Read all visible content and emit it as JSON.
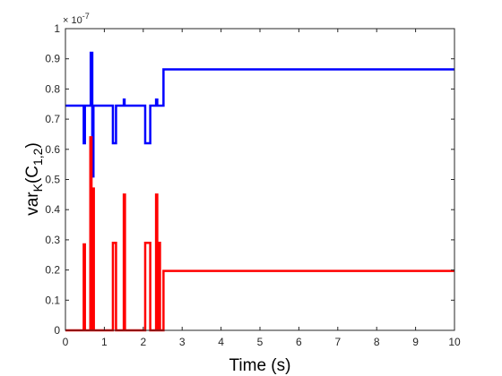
{
  "chart_data": {
    "type": "line",
    "xlabel": "Time (s)",
    "ylabel_main": "var",
    "ylabel_sub": "K",
    "ylabel_paren_open": "(C",
    "ylabel_paren_sub": "1,2",
    "ylabel_paren_close": ")",
    "exponent_base": "× 10",
    "exponent_power": "-7",
    "xlim": [
      0,
      10
    ],
    "ylim": [
      0,
      1
    ],
    "x_ticks": [
      "0",
      "1",
      "2",
      "3",
      "4",
      "5",
      "6",
      "7",
      "8",
      "9",
      "10"
    ],
    "y_ticks": [
      "0",
      "0.1",
      "0.2",
      "0.3",
      "0.4",
      "0.5",
      "0.6",
      "0.7",
      "0.8",
      "0.9",
      "1"
    ],
    "grid": false,
    "series": [
      {
        "color": "#0000ff",
        "x": [
          0,
          0.47,
          0.47,
          0.5,
          0.5,
          0.65,
          0.65,
          0.69,
          0.69,
          0.72,
          0.72,
          0.75,
          0.75,
          1.22,
          1.22,
          1.3,
          1.3,
          1.5,
          1.5,
          1.52,
          1.52,
          2.05,
          2.05,
          2.18,
          2.18,
          2.33,
          2.33,
          2.36,
          2.36,
          2.4,
          2.4,
          2.52,
          2.52,
          10
        ],
        "y": [
          0.745,
          0.745,
          0.62,
          0.62,
          0.745,
          0.745,
          0.92,
          0.92,
          0.51,
          0.51,
          0.745,
          0.745,
          0.745,
          0.745,
          0.62,
          0.62,
          0.745,
          0.745,
          0.765,
          0.765,
          0.745,
          0.745,
          0.62,
          0.62,
          0.745,
          0.745,
          0.765,
          0.765,
          0.745,
          0.745,
          0.745,
          0.745,
          0.865,
          0.865
        ]
      },
      {
        "color": "#ff0000",
        "x": [
          0,
          0.47,
          0.47,
          0.5,
          0.5,
          0.64,
          0.64,
          0.67,
          0.67,
          0.7,
          0.7,
          0.73,
          0.73,
          0.76,
          0.76,
          1.22,
          1.22,
          1.3,
          1.3,
          1.5,
          1.5,
          1.53,
          1.53,
          2.05,
          2.05,
          2.18,
          2.18,
          2.33,
          2.33,
          2.36,
          2.36,
          2.4,
          2.4,
          2.43,
          2.43,
          2.52,
          2.52,
          10
        ],
        "y": [
          0,
          0,
          0.285,
          0.285,
          0,
          0,
          0.64,
          0.64,
          0,
          0,
          0.47,
          0.47,
          0,
          0,
          0,
          0,
          0.29,
          0.29,
          0,
          0,
          0.45,
          0.45,
          0,
          0,
          0.29,
          0.29,
          0,
          0,
          0.45,
          0.45,
          0,
          0,
          0.29,
          0.29,
          0,
          0,
          0.197,
          0.197
        ]
      }
    ]
  }
}
